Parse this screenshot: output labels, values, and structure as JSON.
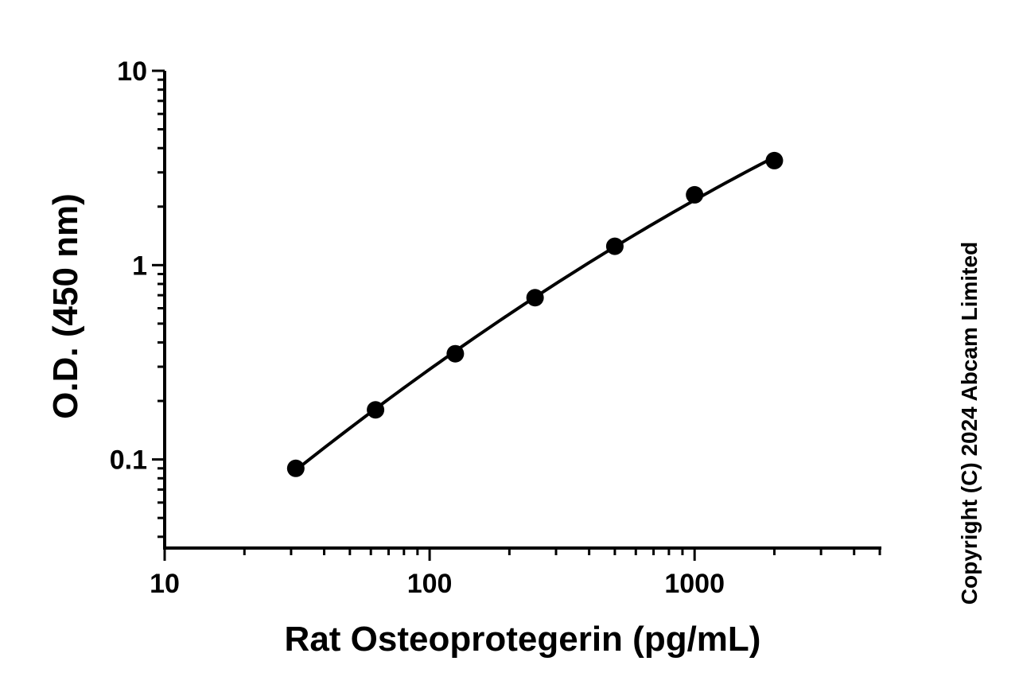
{
  "chart_data": {
    "type": "scatter",
    "title": "",
    "xlabel": "Rat Osteoprotegerin (pg/mL)",
    "ylabel": "O.D. (450 nm)",
    "xscale": "log",
    "yscale": "log",
    "xlim": [
      10,
      5000
    ],
    "ylim": [
      0.035,
      10
    ],
    "x_ticks": [
      10,
      100,
      1000
    ],
    "x_tick_labels": [
      "10",
      "100",
      "1000"
    ],
    "y_ticks": [
      0.1,
      1,
      10
    ],
    "y_tick_labels": [
      "0.1",
      "1",
      "10"
    ],
    "grid": false,
    "legend": "none",
    "series": [
      {
        "marker": "filled-circle",
        "color": "#000000",
        "fit_line": true,
        "x": [
          31.25,
          62.5,
          125,
          250,
          500,
          1000,
          2000
        ],
        "y": [
          0.09,
          0.18,
          0.35,
          0.68,
          1.25,
          2.3,
          3.45
        ]
      }
    ]
  },
  "copyright": "Copyright (C) 2024 Abcam Limited"
}
